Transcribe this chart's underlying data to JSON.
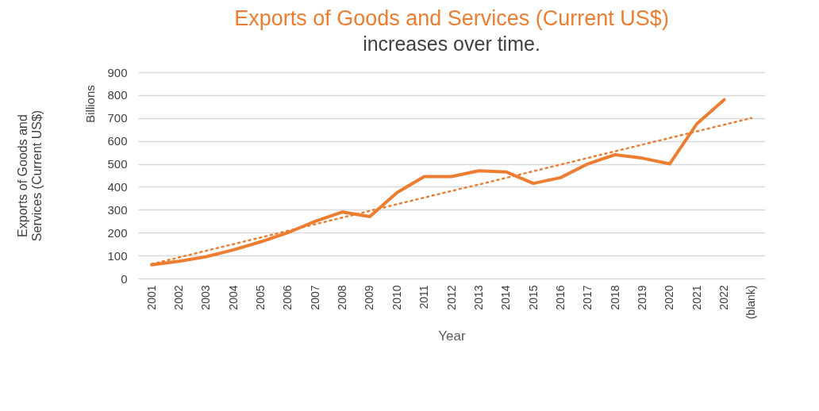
{
  "chart_data": {
    "type": "line",
    "title": "Exports of Goods and Services (Current US$)",
    "subtitle": "increases over time.",
    "xlabel": "Year",
    "ylabel": "Exports of Goods and Services (Current US$)",
    "annotations": [
      "Billions"
    ],
    "categories": [
      "2001",
      "2002",
      "2003",
      "2004",
      "2005",
      "2006",
      "2007",
      "2008",
      "2009",
      "2010",
      "2011",
      "2012",
      "2013",
      "2014",
      "2015",
      "2016",
      "2017",
      "2018",
      "2019",
      "2020",
      "2021",
      "2022",
      "(blank)"
    ],
    "series": [
      {
        "color": "#ed7d31",
        "values": [
          60,
          75,
          95,
          125,
          160,
          200,
          250,
          290,
          270,
          375,
          445,
          445,
          470,
          465,
          415,
          440,
          500,
          540,
          525,
          500,
          675,
          780,
          null
        ]
      },
      {
        "type": "line",
        "color": "#ed7d31",
        "line_style": "dotted",
        "values": [
          63,
          92,
          121,
          150,
          179,
          208,
          237,
          266,
          295,
          324,
          353,
          382,
          410,
          439,
          468,
          497,
          526,
          555,
          584,
          613,
          642,
          671,
          700
        ]
      }
    ],
    "ylim": [
      0,
      900
    ],
    "yticks": [
      0,
      100,
      200,
      300,
      400,
      500,
      600,
      700,
      800,
      900
    ],
    "grid": "y",
    "marker": "none",
    "line_style": "solid"
  }
}
